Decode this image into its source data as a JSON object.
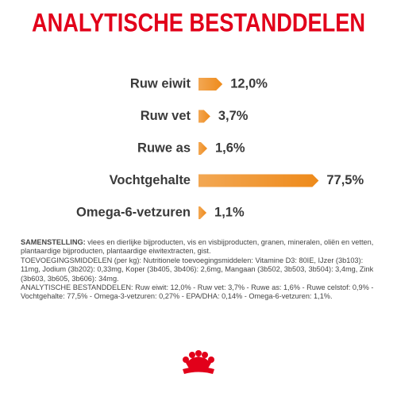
{
  "chart_data": {
    "type": "bar",
    "orientation": "horizontal",
    "title": "ANALYTISCHE BESTANDDELEN",
    "categories": [
      "Ruw eiwit",
      "Ruw vet",
      "Ruwe as",
      "Vochtgehalte",
      "Omega-6-vetzuren"
    ],
    "values": [
      12.0,
      3.7,
      1.6,
      77.5,
      1.1
    ],
    "value_labels": [
      "12,0%",
      "3,7%",
      "1,6%",
      "77,5%",
      "1,1%"
    ],
    "color": "#ee8a1a"
  },
  "composition": {
    "label": "SAMENSTELLING:",
    "text": "vlees en dierlijke bijproducten, vis en visbijproducten, granen, mineralen, oliën en vetten, plantaardige bijproducten, plantaardige eiwitextracten, gist."
  },
  "additives": "TOEVOEGINGSMIDDELEN (per kg): Nutritionele toevoegingsmiddelen: Vitamine D3: 80IE, IJzer (3b103): 11mg, Jodium (3b202): 0,33mg, Koper (3b405, 3b406): 2,6mg, Mangaan (3b502, 3b503, 3b504): 3,4mg, Zink (3b603, 3b605, 3b606): 34mg.",
  "analysis": "ANALYTISCHE BESTANDDELEN: Ruw eiwit: 12,0% - Ruw vet: 3,7% - Ruwe as: 1,6% - Ruwe celstof: 0,9% - Vochtgehalte: 77,5% - Omega-3-vetzuren: 0,27% - EPA/DHA: 0,14% - Omega-6-vetzuren: 1,1%."
}
